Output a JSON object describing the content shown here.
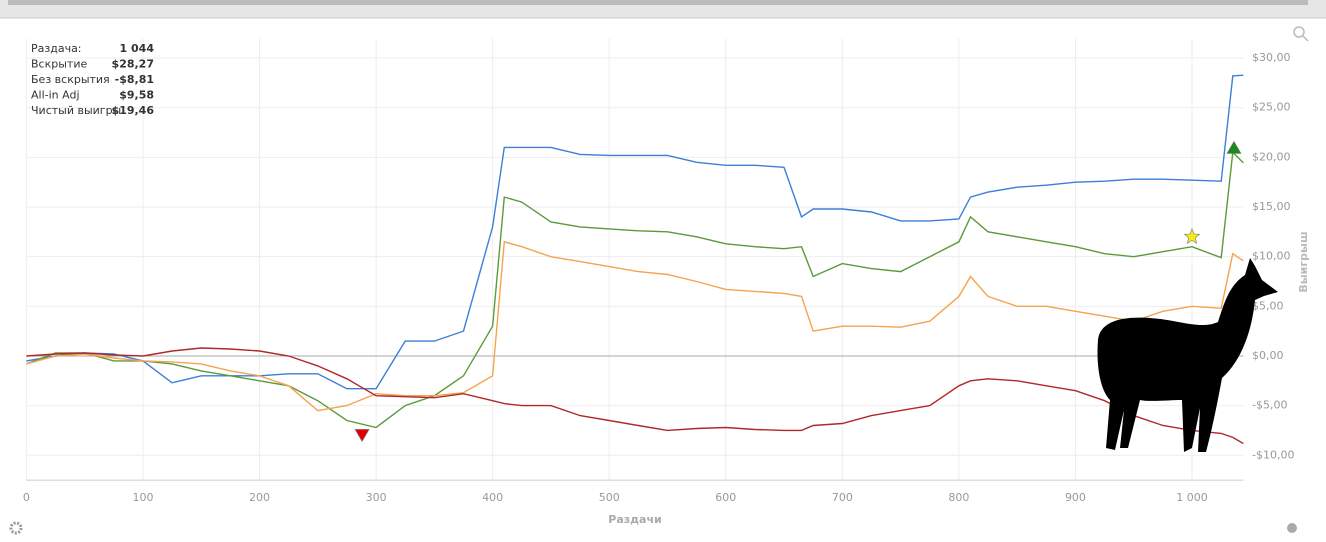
{
  "chart_data": {
    "type": "line",
    "x_label": "Раздачи",
    "y_label": "Выигрыш",
    "stats": [
      {
        "label": "Раздача:",
        "value": "1 044"
      },
      {
        "label": "Вскрытие",
        "value": "$28,27"
      },
      {
        "label": "Без вскрытия",
        "value": "-$8,81"
      },
      {
        "label": "All-in Adj",
        "value": "$9,58"
      },
      {
        "label": "Чистый выигры",
        "value": "$19,46"
      }
    ],
    "x": [
      0,
      25,
      50,
      75,
      100,
      125,
      150,
      175,
      200,
      225,
      250,
      275,
      300,
      325,
      350,
      375,
      400,
      410,
      425,
      450,
      475,
      500,
      525,
      550,
      575,
      600,
      625,
      650,
      665,
      675,
      700,
      725,
      750,
      775,
      800,
      810,
      825,
      850,
      875,
      900,
      925,
      950,
      975,
      1000,
      1025,
      1035,
      1044
    ],
    "series": [
      {
        "name": "Вскрытие",
        "color": "#3b7fd9",
        "values": [
          -0.5,
          0,
          0.3,
          0.2,
          -0.5,
          -2.7,
          -2,
          -2,
          -2,
          -1.8,
          -1.8,
          -3.3,
          -3.3,
          1.5,
          1.5,
          2.5,
          13,
          21,
          21,
          21,
          20.3,
          20.2,
          20.2,
          20.2,
          19.5,
          19.2,
          19.2,
          19,
          14,
          14.8,
          14.8,
          14.5,
          13.6,
          13.6,
          13.8,
          16,
          16.5,
          17,
          17.2,
          17.5,
          17.6,
          17.8,
          17.8,
          17.7,
          17.6,
          28.2,
          28.27
        ]
      },
      {
        "name": "Чистый выигры",
        "color": "#5b9a3a",
        "values": [
          -0.8,
          0.3,
          0.3,
          -0.5,
          -0.5,
          -0.8,
          -1.5,
          -2,
          -2.5,
          -3,
          -4.5,
          -6.5,
          -7.2,
          -5,
          -4,
          -2,
          3,
          16,
          15.5,
          13.5,
          13,
          12.8,
          12.6,
          12.5,
          12,
          11.3,
          11,
          10.8,
          11,
          8,
          9.3,
          8.8,
          8.5,
          10,
          11.5,
          14,
          12.5,
          12,
          11.5,
          11,
          10.3,
          10,
          10.5,
          11,
          9.9,
          20.5,
          19.46
        ]
      },
      {
        "name": "All-in Adj",
        "color": "#f5a34f",
        "values": [
          -0.8,
          0,
          0.2,
          -0.2,
          -0.5,
          -0.6,
          -0.8,
          -1.5,
          -2,
          -3,
          -5.5,
          -5,
          -3.8,
          -4,
          -4,
          -3.7,
          -2,
          11.5,
          11,
          10,
          9.5,
          9,
          8.5,
          8.2,
          7.5,
          6.7,
          6.5,
          6.3,
          6,
          2.5,
          3,
          3,
          2.9,
          3.5,
          6,
          8,
          6,
          5,
          5,
          4.5,
          4,
          3.5,
          4.5,
          5,
          4.8,
          10.3,
          9.58
        ]
      },
      {
        "name": "Без вскрытия",
        "color": "#b0282a",
        "values": [
          0,
          0.2,
          0.3,
          0.1,
          0,
          0.5,
          0.8,
          0.7,
          0.5,
          0,
          -1,
          -2.3,
          -4,
          -4.1,
          -4.2,
          -3.8,
          -4.5,
          -4.8,
          -5,
          -5,
          -6,
          -6.5,
          -7,
          -7.5,
          -7.3,
          -7.2,
          -7.4,
          -7.5,
          -7.5,
          -7,
          -6.8,
          -6,
          -5.5,
          -5,
          -3,
          -2.5,
          -2.3,
          -2.5,
          -3,
          -3.5,
          -4.5,
          -6,
          -7,
          -7.5,
          -7.8,
          -8.2,
          -8.81
        ]
      }
    ],
    "markers": [
      {
        "x": 288,
        "y": -8,
        "shape": "triangle-down",
        "color": "#e00000"
      },
      {
        "x": 1036,
        "y": 21,
        "shape": "triangle-up",
        "color": "#1a8a1a"
      },
      {
        "x": 1000,
        "y": 12,
        "shape": "star",
        "color": "#f7ea1c"
      }
    ],
    "xlim": [
      0,
      1044
    ],
    "ylim": [
      -12.5,
      32
    ],
    "xticks": [
      0,
      100,
      200,
      300,
      400,
      500,
      600,
      700,
      800,
      900,
      {
        "value": 1000,
        "label": "1 000"
      }
    ],
    "yticks": [
      {
        "value": -10,
        "label": "-$10,00"
      },
      {
        "value": -5,
        "label": "-$5,00"
      },
      {
        "value": 0,
        "label": "$0,00"
      },
      {
        "value": 5,
        "label": "$5,00"
      },
      {
        "value": 10,
        "label": "$10,00"
      },
      {
        "value": 15,
        "label": "$15,00"
      },
      {
        "value": 20,
        "label": "$20,00"
      },
      {
        "value": 25,
        "label": "$25,00"
      },
      {
        "value": 30,
        "label": "$30,00"
      }
    ],
    "grid": true
  }
}
